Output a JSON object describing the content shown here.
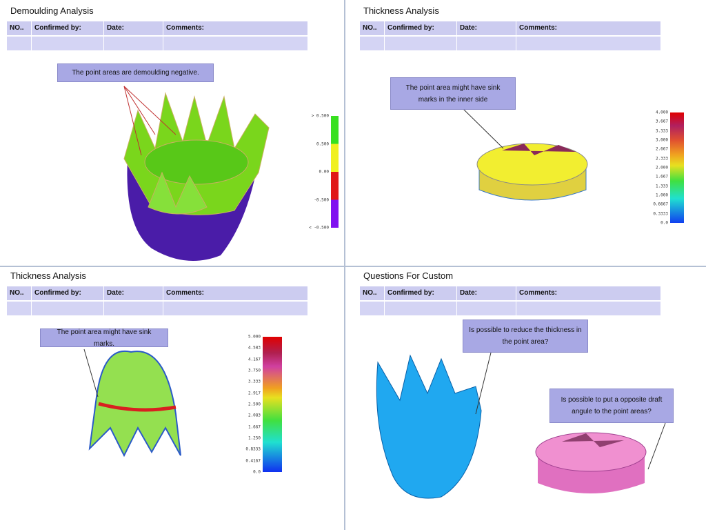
{
  "panels": [
    {
      "title": "Demoulding Analysis",
      "table": {
        "header": [
          "NO..",
          "Confirmed by:",
          "Date:",
          "Comments:"
        ]
      },
      "callouts": [
        "The point areas are demoulding negative."
      ],
      "scale": {
        "labels": [
          "> 0.500",
          "0.500",
          "0.00",
          "-0.500",
          "< -0.500"
        ]
      }
    },
    {
      "title": "Thickness Analysis",
      "table": {
        "header": [
          "NO..",
          "Confirmed by:",
          "Date:",
          "Comments:"
        ]
      },
      "callouts": [
        "The point area might have sink marks in the inner side"
      ],
      "scale": {
        "labels": [
          "4.000",
          "3.667",
          "3.333",
          "3.000",
          "2.667",
          "2.333",
          "2.000",
          "1.667",
          "1.333",
          "1.000",
          "0.6667",
          "0.3333",
          "0.0"
        ]
      }
    },
    {
      "title": "Thickness Analysis",
      "table": {
        "header": [
          "NO..",
          "Confirmed by:",
          "Date:",
          "Comments:"
        ]
      },
      "callouts": [
        "The point area might have sink marks."
      ],
      "scale": {
        "labels": [
          "5.000",
          "4.583",
          "4.167",
          "3.750",
          "3.333",
          "2.917",
          "2.500",
          "2.083",
          "1.667",
          "1.250",
          "0.8333",
          "0.4167",
          "0.0"
        ]
      }
    },
    {
      "title": "Questions For Custom",
      "table": {
        "header": [
          "NO..",
          "Confirmed by:",
          "Date:",
          "Comments:"
        ]
      },
      "callouts": [
        "Is possible to reduce the thickness in the point area?",
        "Is possible to put a opposite draft angule to the point areas?"
      ]
    }
  ]
}
